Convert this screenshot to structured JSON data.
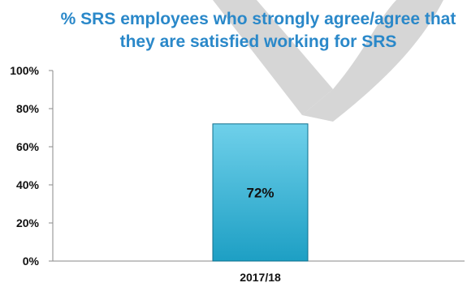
{
  "chart_data": {
    "type": "bar",
    "title_lines": [
      "% SRS employees who strongly agree/agree that",
      "they are satisfied working for SRS"
    ],
    "categories": [
      "2017/18"
    ],
    "values": [
      72
    ],
    "value_labels": [
      "72%"
    ],
    "ylim": [
      0,
      100
    ],
    "y_ticks": [
      0,
      20,
      40,
      60,
      80,
      100
    ],
    "y_tick_labels": [
      "0%",
      "20%",
      "40%",
      "60%",
      "80%",
      "100%"
    ],
    "xlabel": "",
    "ylabel": "",
    "grid": false,
    "legend": "none"
  },
  "colors": {
    "title": "#2a88c9",
    "bar_top": "#6fd0ea",
    "bar_bottom": "#1d9fc4",
    "bar_edge": "#0f6f8c",
    "watermark": "#d6d6d6"
  }
}
